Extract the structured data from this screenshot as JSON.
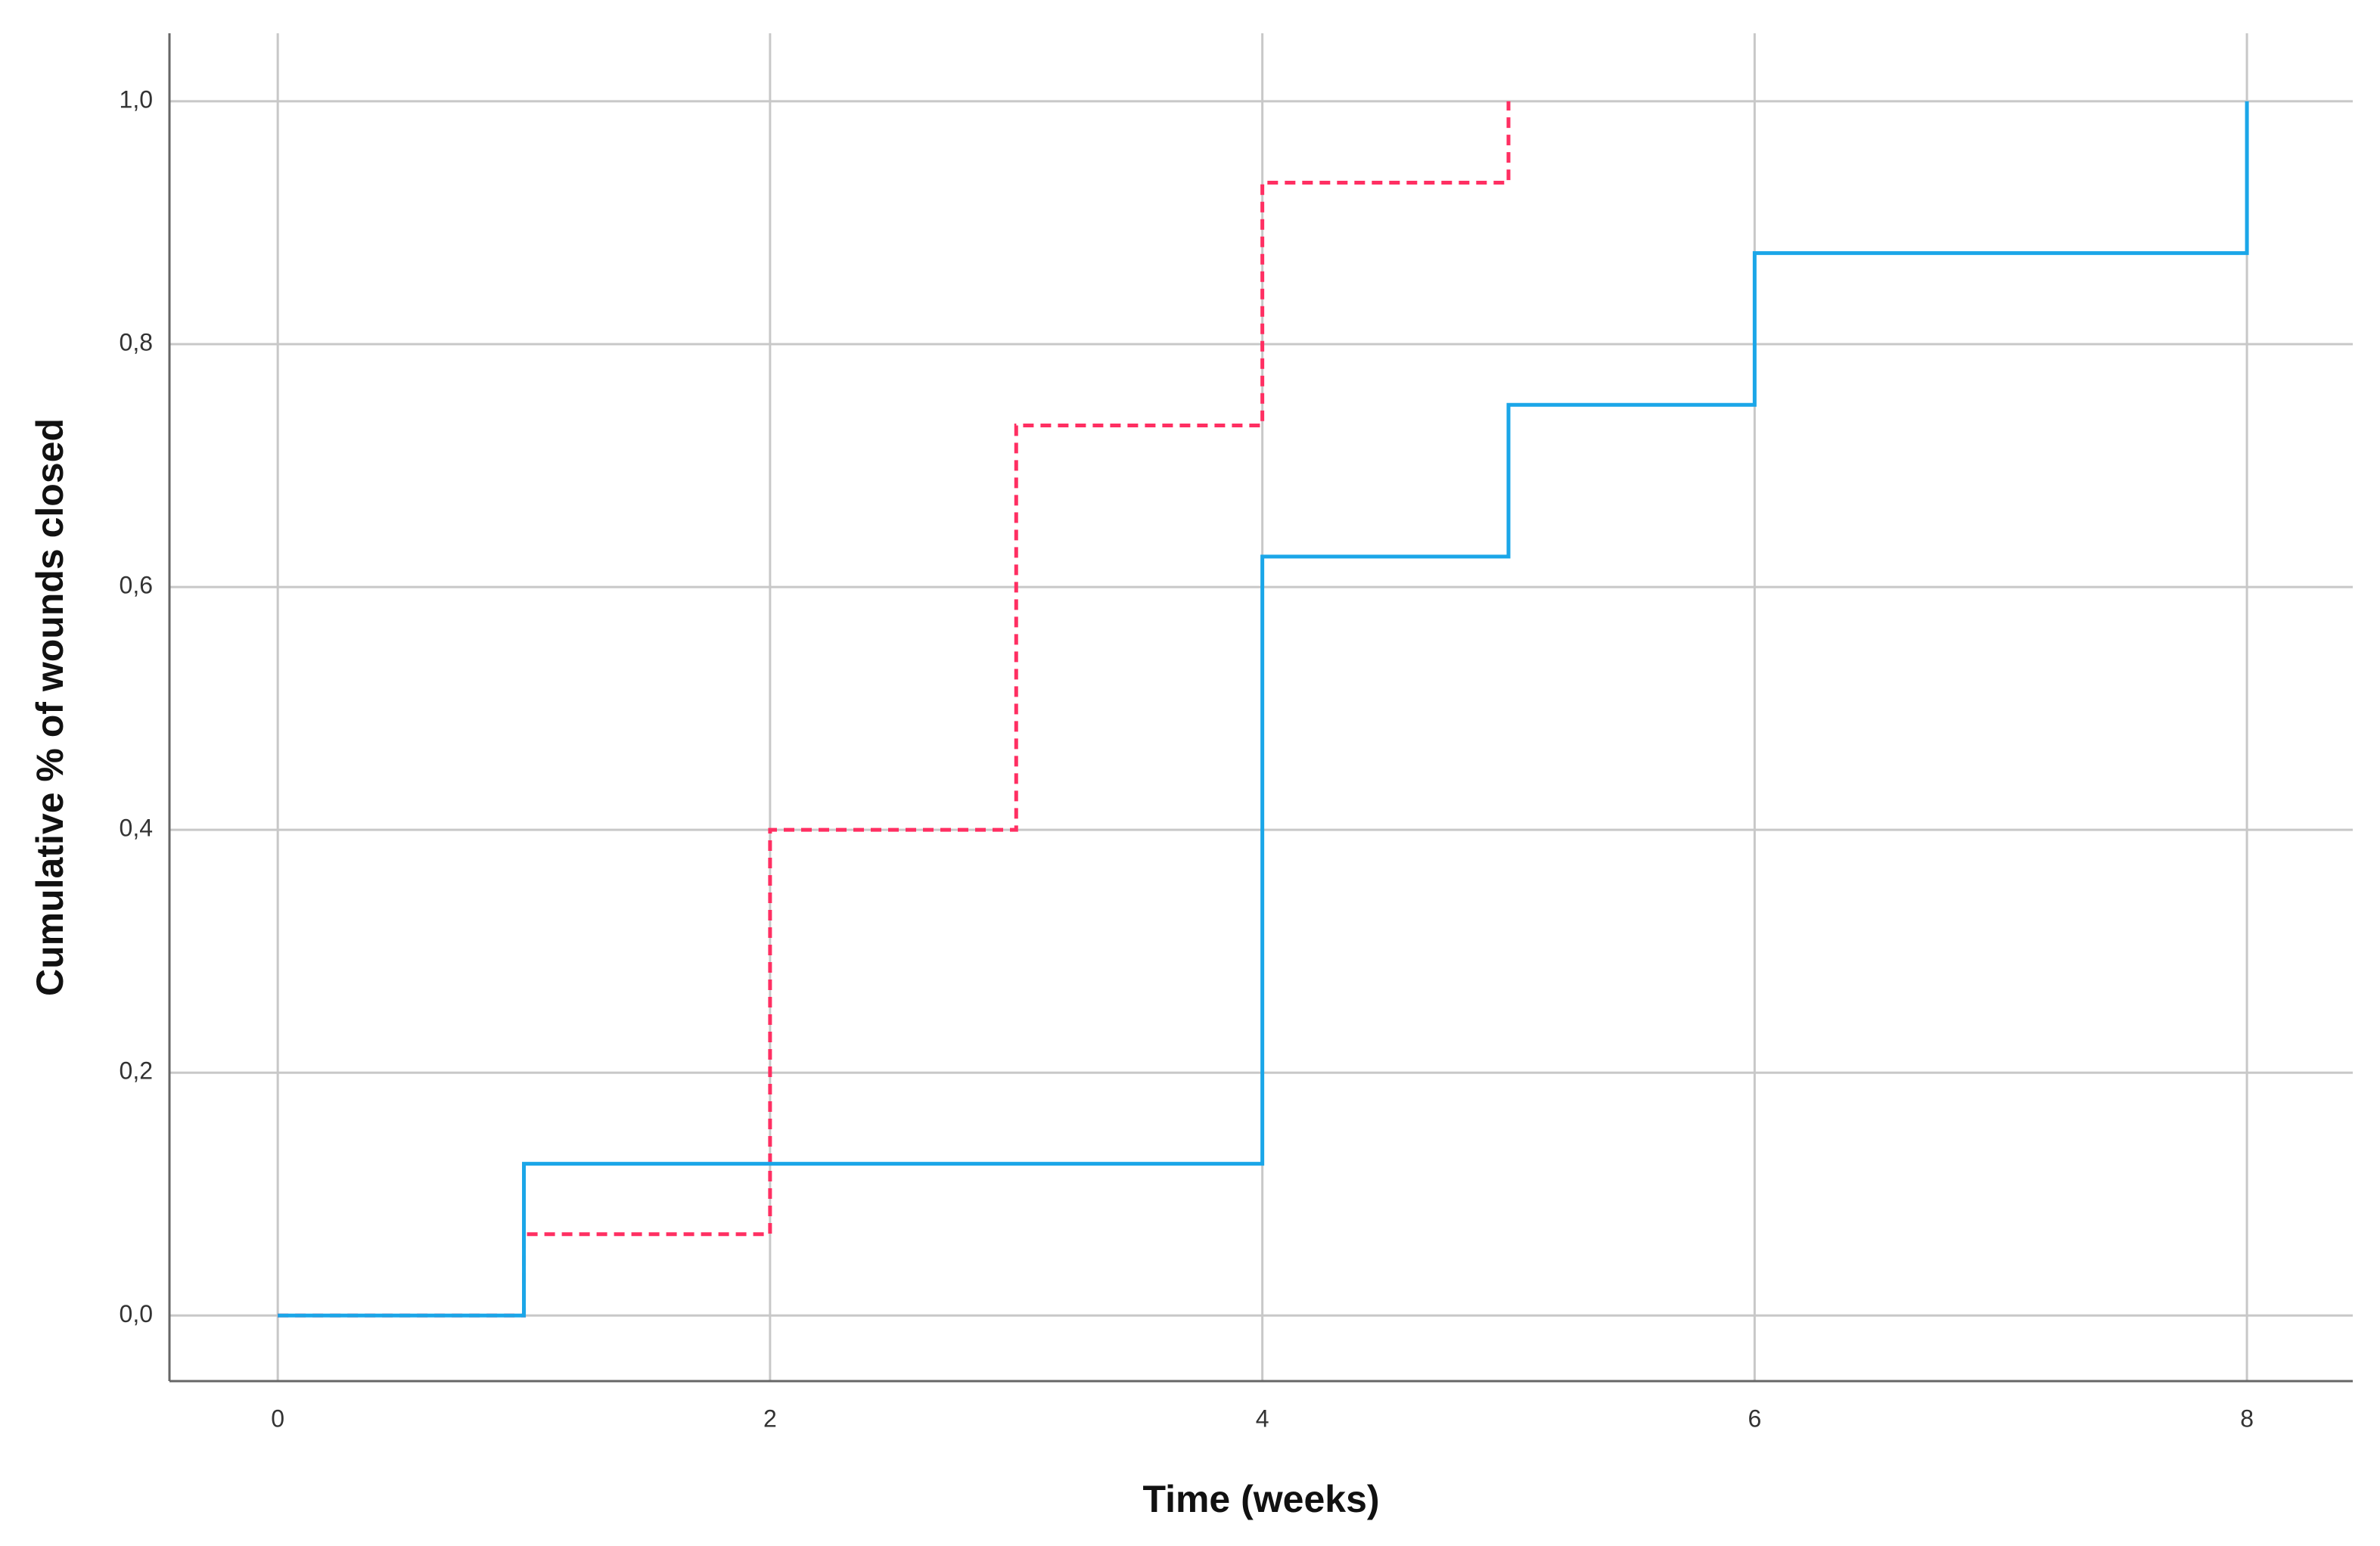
{
  "chart_data": {
    "type": "step",
    "x_label": "Time (weeks)",
    "y_label": "Cumulative % of wounds closed",
    "series": [
      {
        "color": "#1ba6e8",
        "dash": false,
        "x": [
          0,
          1,
          4,
          5,
          6,
          8
        ],
        "values": [
          0,
          0.125,
          0.625,
          0.75,
          0.875,
          1.0
        ]
      },
      {
        "color": "#ff2f62",
        "dash": true,
        "x": [
          0,
          1,
          2,
          3,
          4,
          5
        ],
        "values": [
          0,
          0.067,
          0.4,
          0.733,
          0.933,
          1.0
        ]
      }
    ],
    "xlim": [
      -0.44,
      8.43
    ],
    "ylim": [
      -0.054,
      1.056
    ],
    "xticks": [
      0,
      2,
      4,
      6,
      8
    ],
    "yticks": [
      {
        "value": 0,
        "label": "0,0"
      },
      {
        "value": 0.2,
        "label": "0,2"
      },
      {
        "value": 0.4,
        "label": "0,4"
      },
      {
        "value": 0.6,
        "label": "0,6"
      },
      {
        "value": 0.8,
        "label": "0,8"
      },
      {
        "value": 1.0,
        "label": "1,0"
      }
    ],
    "grid": true
  }
}
